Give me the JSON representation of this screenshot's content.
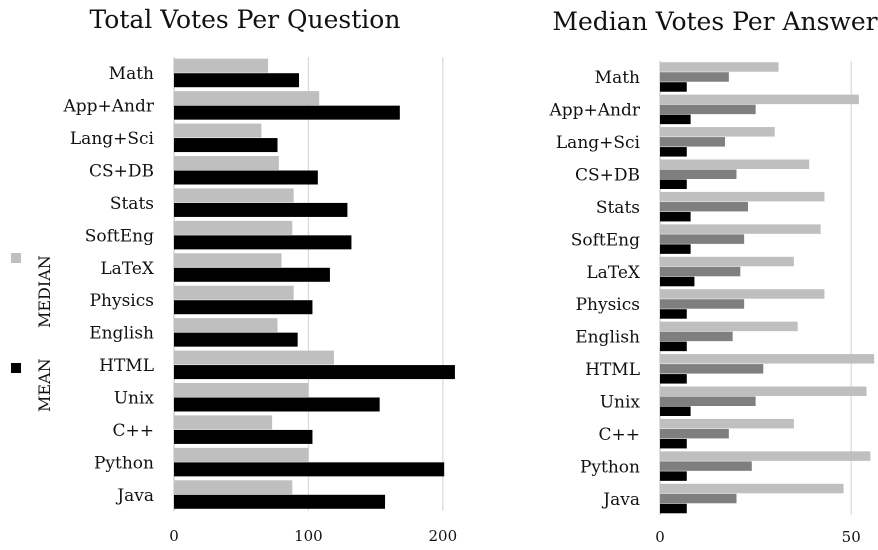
{
  "chart_data": [
    {
      "type": "bar",
      "orientation": "horizontal",
      "title": "Total Votes Per Question",
      "categories": [
        "Math",
        "App+Andr",
        "Lang+Sci",
        "CS+DB",
        "Stats",
        "SoftEng",
        "LaTeX",
        "Physics",
        "English",
        "HTML",
        "Unix",
        "C++",
        "Python",
        "Java"
      ],
      "series": [
        {
          "name": "MEDIAN",
          "color": "#bfbfbf",
          "values": [
            70,
            108,
            65,
            78,
            89,
            88,
            80,
            89,
            77,
            119,
            100,
            73,
            100,
            88
          ]
        },
        {
          "name": "MEAN",
          "color": "#000000",
          "values": [
            93,
            168,
            77,
            107,
            129,
            132,
            116,
            103,
            92,
            209,
            153,
            103,
            201,
            157
          ]
        }
      ],
      "xlim": [
        0,
        215
      ],
      "xticks": [
        "0",
        "100",
        "200"
      ],
      "grid": true,
      "legend": "left"
    },
    {
      "type": "bar",
      "orientation": "horizontal",
      "title": "Median Votes Per Answer",
      "categories": [
        "Math",
        "App+Andr",
        "Lang+Sci",
        "CS+DB",
        "Stats",
        "SoftEng",
        "LaTeX",
        "Physics",
        "English",
        "HTML",
        "Unix",
        "C++",
        "Python",
        "Java"
      ],
      "series": [
        {
          "color": "#bfbfbf",
          "values": [
            31,
            52,
            30,
            39,
            43,
            42,
            35,
            43,
            36,
            56,
            54,
            35,
            55,
            48
          ]
        },
        {
          "color": "#7f7f7f",
          "values": [
            18,
            25,
            17,
            20,
            23,
            22,
            21,
            22,
            19,
            27,
            25,
            18,
            24,
            20
          ]
        },
        {
          "color": "#000000",
          "values": [
            7,
            8,
            7,
            7,
            8,
            8,
            9,
            7,
            7,
            7,
            8,
            7,
            7,
            7
          ]
        }
      ],
      "xlim": [
        0,
        57
      ],
      "xticks": [
        "0",
        "50"
      ],
      "grid": true
    }
  ]
}
